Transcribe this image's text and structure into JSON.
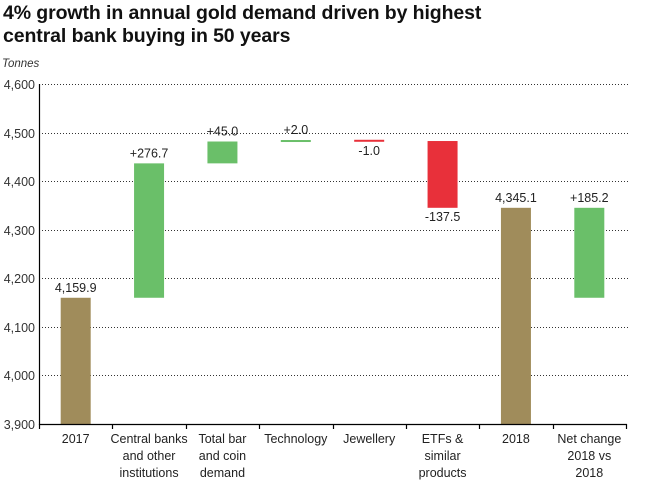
{
  "chart_data": {
    "type": "bar",
    "subtype": "waterfall",
    "title_lines": [
      "4% growth in annual gold demand driven by highest",
      "central bank buying in 50 years"
    ],
    "ylabel": "Tonnes",
    "xlabel": "",
    "ylim": [
      3900,
      4600
    ],
    "yticks": [
      3900,
      4000,
      4100,
      4200,
      4300,
      4400,
      4500,
      4600
    ],
    "ytick_labels": [
      "3,900",
      "4,000",
      "4,100",
      "4,200",
      "4,300",
      "4,400",
      "4,500",
      "4,600"
    ],
    "grid": "horizontal-dotted",
    "categories": [
      [
        "2017"
      ],
      [
        "Central banks",
        "and other",
        "institutions"
      ],
      [
        "Total bar",
        "and coin",
        "demand"
      ],
      [
        "Technology"
      ],
      [
        "Jewellery"
      ],
      [
        "ETFs &",
        "similar",
        "products"
      ],
      [
        "2018"
      ],
      [
        "Net change",
        "2018 vs",
        "2018"
      ]
    ],
    "bars": [
      {
        "kind": "total",
        "start": 3900,
        "end": 4159.9,
        "label": "4,159.9",
        "label_pos": "above"
      },
      {
        "kind": "increase",
        "start": 4159.9,
        "end": 4436.6,
        "label": "+276.7",
        "label_pos": "above"
      },
      {
        "kind": "increase",
        "start": 4436.6,
        "end": 4481.6,
        "label": "+45.0",
        "label_pos": "above"
      },
      {
        "kind": "increase",
        "start": 4481.6,
        "end": 4483.6,
        "label": "+2.0",
        "label_pos": "above"
      },
      {
        "kind": "decrease",
        "start": 4483.6,
        "end": 4482.6,
        "label": "-1.0",
        "label_pos": "below"
      },
      {
        "kind": "decrease",
        "start": 4482.6,
        "end": 4345.1,
        "label": "-137.5",
        "label_pos": "below"
      },
      {
        "kind": "total",
        "start": 3900,
        "end": 4345.1,
        "label": "4,345.1",
        "label_pos": "above"
      },
      {
        "kind": "increase",
        "start": 4159.9,
        "end": 4345.1,
        "label": "+185.2",
        "label_pos": "above"
      }
    ],
    "colors": {
      "total": "#a08c5b",
      "increase": "#6abf69",
      "decrease": "#e8303a",
      "axis": "#000000",
      "grid": "#333333"
    }
  }
}
